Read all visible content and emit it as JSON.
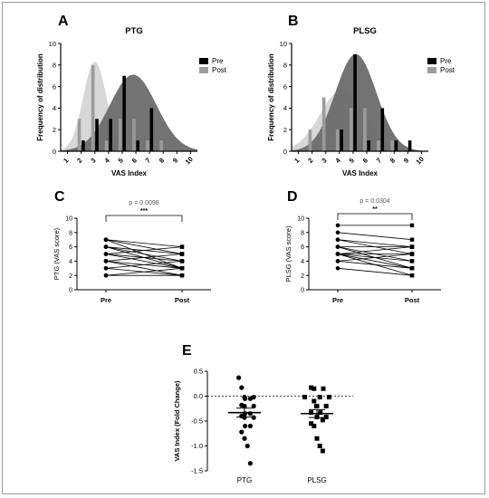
{
  "colors": {
    "pre": "#000000",
    "post": "#9b9b9b",
    "pre_curve": "#6b6b6b",
    "post_curve": "#d3d3d3",
    "axis": "#000000"
  },
  "chart_data": [
    {
      "id": "A",
      "panel_letter": "A",
      "type": "bar",
      "title": "PTG",
      "xlabel": "VAS Index",
      "ylabel": "Frequency of distribution",
      "categories": [
        "1",
        "2",
        "3",
        "4",
        "5",
        "6",
        "7",
        "8",
        "9",
        "10"
      ],
      "ylim": [
        0,
        10
      ],
      "yticks": [
        "0",
        "2",
        "4",
        "6",
        "8",
        "10"
      ],
      "legend": {
        "position": "top-right",
        "items": [
          "Pre",
          "Post"
        ]
      },
      "series": [
        {
          "name": "Pre",
          "values": [
            0,
            1,
            3,
            3,
            7,
            1,
            4,
            0,
            0,
            0
          ]
        },
        {
          "name": "Post",
          "values": [
            0,
            3,
            8,
            1,
            3,
            3,
            1,
            1,
            0,
            0
          ]
        }
      ],
      "curves": [
        {
          "series": "Post",
          "mean": 3.0,
          "peak": 8.3,
          "sd": 0.85
        },
        {
          "series": "Pre",
          "mean": 5.8,
          "peak": 7.1,
          "sd": 1.7
        }
      ]
    },
    {
      "id": "B",
      "panel_letter": "B",
      "type": "bar",
      "title": "PLSG",
      "xlabel": "VAS Index",
      "ylabel": "Frequency of distribution",
      "categories": [
        "1",
        "2",
        "3",
        "4",
        "5",
        "6",
        "7",
        "8",
        "9",
        "10"
      ],
      "ylim": [
        0,
        10
      ],
      "yticks": [
        "0",
        "2",
        "4",
        "6",
        "8",
        "10"
      ],
      "legend": {
        "position": "top-right",
        "items": [
          "Pre",
          "Post"
        ]
      },
      "series": [
        {
          "name": "Pre",
          "values": [
            0,
            0,
            0,
            2,
            9,
            1,
            4,
            1,
            1,
            0
          ]
        },
        {
          "name": "Post",
          "values": [
            0,
            2,
            5,
            2,
            4,
            4,
            1,
            1,
            0,
            0
          ]
        }
      ],
      "curves": [
        {
          "series": "Post",
          "mean": 4.2,
          "peak": 5.7,
          "sd": 1.6
        },
        {
          "series": "Pre",
          "mean": 5.2,
          "peak": 9.0,
          "sd": 1.5
        }
      ]
    },
    {
      "id": "C",
      "panel_letter": "C",
      "type": "line",
      "ylabel": "PTG (VAS score)",
      "categories": [
        "Pre",
        "Post"
      ],
      "ylim": [
        0,
        10
      ],
      "yticks": [
        "0",
        "2",
        "4",
        "6",
        "8",
        "10"
      ],
      "p_value": "p = 0.0098",
      "significance": "***",
      "pairs": [
        [
          7,
          6
        ],
        [
          7,
          5
        ],
        [
          7,
          3
        ],
        [
          6,
          4
        ],
        [
          6,
          5
        ],
        [
          6,
          3
        ],
        [
          5,
          6
        ],
        [
          5,
          4
        ],
        [
          5,
          3
        ],
        [
          4,
          5
        ],
        [
          4,
          3
        ],
        [
          4,
          2
        ],
        [
          3,
          4
        ],
        [
          3,
          2
        ],
        [
          2,
          3
        ],
        [
          2,
          2
        ]
      ]
    },
    {
      "id": "D",
      "panel_letter": "D",
      "type": "line",
      "ylabel": "PLSG (VAS score)",
      "categories": [
        "Pre",
        "Post"
      ],
      "ylim": [
        0,
        10
      ],
      "yticks": [
        "0",
        "2",
        "4",
        "6",
        "8",
        "10"
      ],
      "p_value": "p = 0.0304",
      "significance": "**",
      "pairs": [
        [
          9,
          9
        ],
        [
          8,
          7
        ],
        [
          7,
          6
        ],
        [
          7,
          5
        ],
        [
          6,
          6
        ],
        [
          6,
          4
        ],
        [
          5,
          5
        ],
        [
          5,
          3
        ],
        [
          5,
          2
        ],
        [
          5,
          6
        ],
        [
          4,
          3
        ],
        [
          4,
          5
        ],
        [
          3,
          2
        ],
        [
          6,
          3
        ],
        [
          5,
          4
        ]
      ]
    },
    {
      "id": "E",
      "panel_letter": "E",
      "type": "scatter",
      "ylabel": "VAS Index (Fold Change)",
      "categories": [
        "PTG",
        "PLSG"
      ],
      "ylim": [
        -1.5,
        0.5
      ],
      "yticks": [
        "0.5",
        "0.0",
        "-0.5",
        "-1.0",
        "-1.5"
      ],
      "reference_line": 0,
      "groups": [
        {
          "name": "PTG",
          "marker": "circle",
          "mean": -0.33,
          "sem": 0.09,
          "values": [
            0.37,
            0.17,
            -0.02,
            -0.02,
            -0.05,
            -0.05,
            -0.18,
            -0.2,
            -0.2,
            -0.35,
            -0.35,
            -0.4,
            -0.43,
            -0.43,
            -0.6,
            -0.6,
            -0.72,
            -0.85,
            -1.0,
            -1.35
          ]
        },
        {
          "name": "PLSG",
          "marker": "square",
          "mean": -0.35,
          "sem": 0.08,
          "values": [
            0.17,
            0.15,
            0.15,
            -0.02,
            -0.02,
            -0.02,
            -0.1,
            -0.2,
            -0.2,
            -0.2,
            -0.33,
            -0.33,
            -0.42,
            -0.42,
            -0.48,
            -0.55,
            -0.6,
            -0.85,
            -1.0,
            -1.1
          ]
        }
      ]
    }
  ]
}
